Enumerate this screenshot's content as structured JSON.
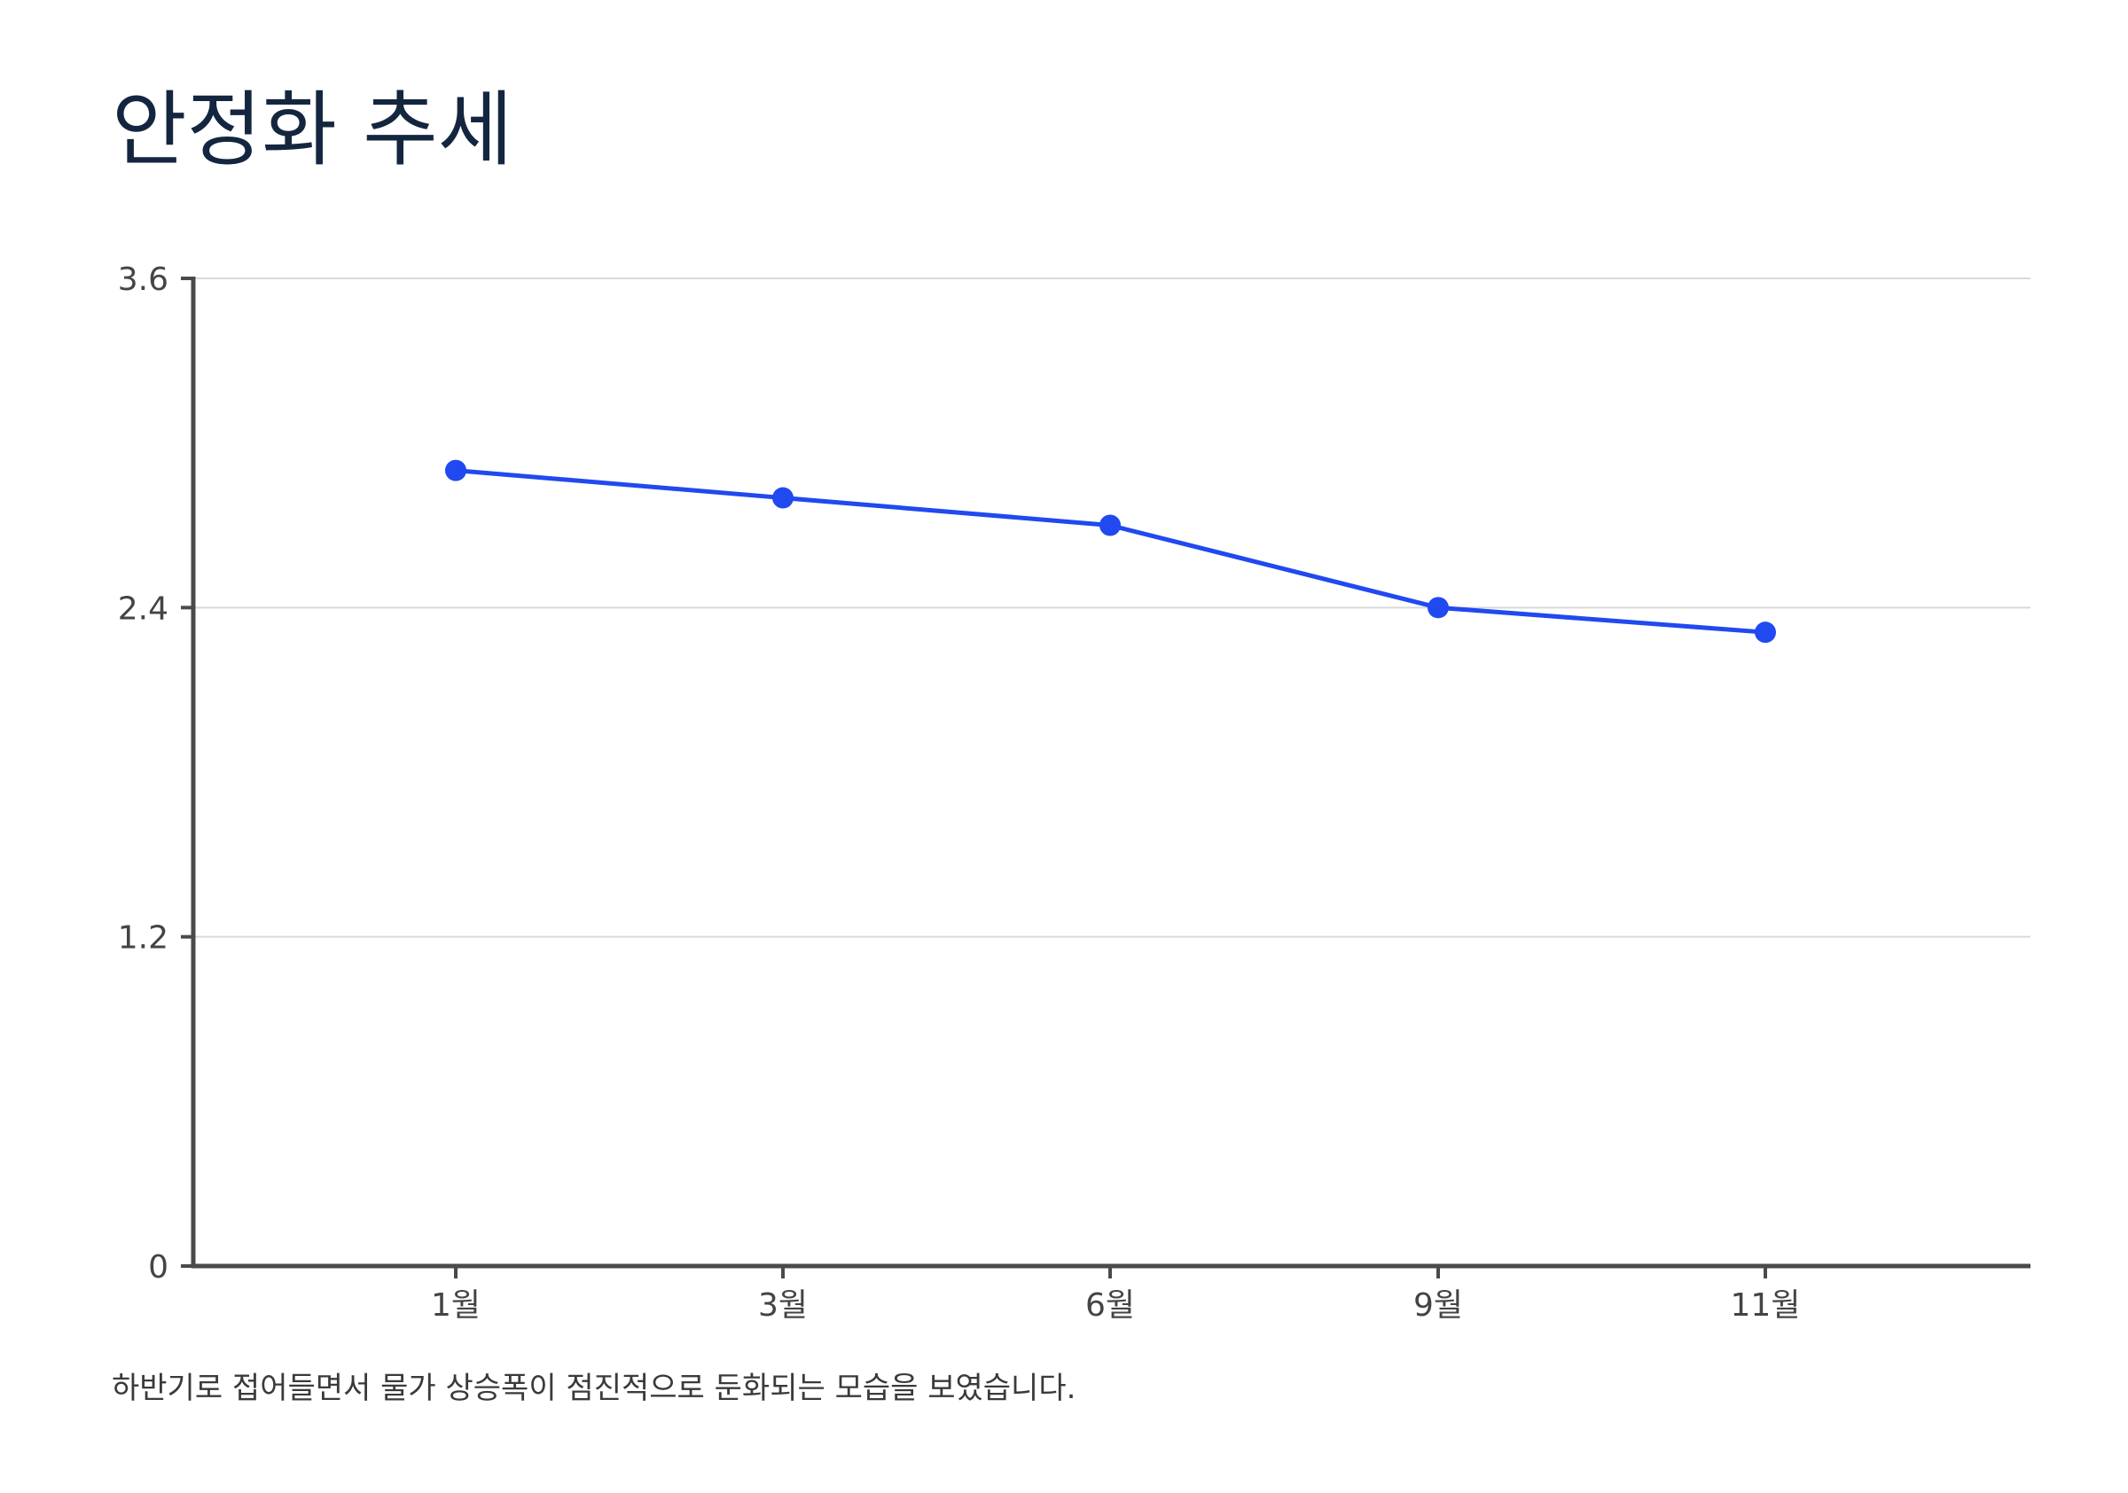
{
  "chart_data": {
    "type": "line",
    "title": "안정화 추세",
    "caption": "하반기로 접어들면서 물가 상승폭이 점진적으로 둔화되는 모습을 보였습니다.",
    "categories": [
      "1월",
      "3월",
      "6월",
      "9월",
      "11월"
    ],
    "series": [
      {
        "values": [
          2.9,
          2.8,
          2.7,
          2.4,
          2.31
        ]
      }
    ],
    "y_ticks": [
      "0",
      "1.2",
      "2.4",
      "3.6"
    ],
    "ylim": [
      0,
      3.6
    ],
    "grid": true,
    "legend": "none",
    "colors": {
      "line": "#2149f0",
      "axis": "#4a4a4a",
      "grid": "#d9d9d9",
      "title": "#14263f"
    }
  }
}
